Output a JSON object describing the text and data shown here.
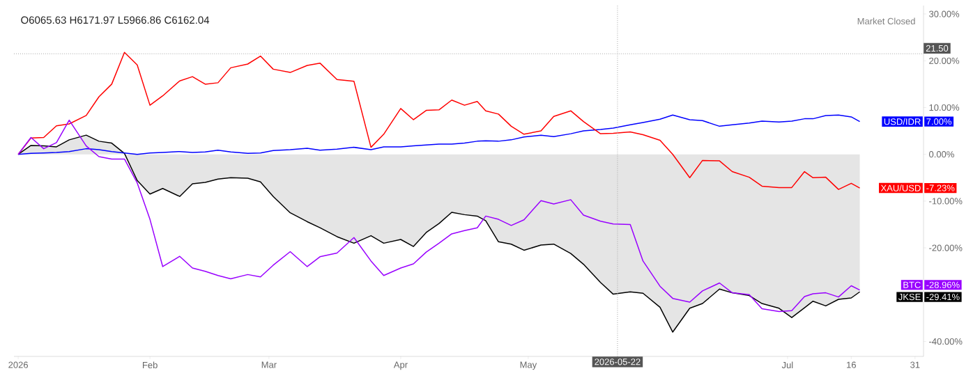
{
  "chart_data": {
    "type": "line",
    "x": [
      "2026-01-01",
      "2026-01-04",
      "2026-01-07",
      "2026-01-10",
      "2026-01-13",
      "2026-01-17",
      "2026-01-20",
      "2026-01-23",
      "2026-01-26",
      "2026-01-29",
      "2026-02-01",
      "2026-02-04",
      "2026-02-08",
      "2026-02-11",
      "2026-02-14",
      "2026-02-17",
      "2026-02-20",
      "2026-02-24",
      "2026-02-27",
      "2026-03-02",
      "2026-03-06",
      "2026-03-10",
      "2026-03-13",
      "2026-03-17",
      "2026-03-21",
      "2026-03-25",
      "2026-03-28",
      "2026-04-01",
      "2026-04-04",
      "2026-04-07",
      "2026-04-10",
      "2026-04-13",
      "2026-04-16",
      "2026-04-19",
      "2026-04-21",
      "2026-04-24",
      "2026-04-27",
      "2026-04-30",
      "2026-05-04",
      "2026-05-07",
      "2026-05-11",
      "2026-05-14",
      "2026-05-18",
      "2026-05-21",
      "2026-05-25",
      "2026-05-28",
      "2026-06-01",
      "2026-06-04",
      "2026-06-08",
      "2026-06-11",
      "2026-06-15",
      "2026-06-18",
      "2026-06-22",
      "2026-06-25",
      "2026-06-29",
      "2026-07-02",
      "2026-07-05",
      "2026-07-07",
      "2026-07-10",
      "2026-07-13",
      "2026-07-16",
      "2026-07-18"
    ],
    "series": [
      {
        "name": "JKSE",
        "type": "area",
        "color": "#000000",
        "values": [
          0,
          1.9,
          1.8,
          1.6,
          3.1,
          4.1,
          2.8,
          2.4,
          0.2,
          -5.6,
          -8.5,
          -7.3,
          -9.0,
          -6.3,
          -6.0,
          -5.3,
          -5.0,
          -5.1,
          -5.9,
          -9.0,
          -12.5,
          -14.4,
          -15.7,
          -17.6,
          -19.0,
          -17.4,
          -19.0,
          -18.2,
          -19.7,
          -16.7,
          -14.8,
          -12.4,
          -12.9,
          -13.2,
          -14.2,
          -18.7,
          -19.2,
          -20.5,
          -19.4,
          -19.2,
          -21.2,
          -23.5,
          -27.4,
          -29.9,
          -29.4,
          -29.7,
          -32.7,
          -38.0,
          -32.9,
          -31.9,
          -28.8,
          -29.6,
          -30.2,
          -31.9,
          -32.9,
          -34.9,
          -32.8,
          -31.4,
          -32.4,
          -31.0,
          -30.7,
          -29.4
        ]
      },
      {
        "name": "USD/IDR",
        "color": "#0000ff",
        "values": [
          0,
          0.2,
          0.3,
          0.4,
          0.6,
          1.2,
          1.0,
          0.6,
          0.3,
          0.0,
          0.3,
          0.4,
          0.6,
          0.4,
          0.5,
          0.9,
          0.5,
          0.2,
          0.3,
          0.8,
          1.0,
          1.3,
          0.9,
          1.1,
          1.5,
          1.0,
          1.6,
          1.6,
          1.8,
          2.0,
          2.2,
          2.2,
          2.4,
          2.8,
          2.9,
          2.8,
          3.1,
          3.7,
          4.1,
          3.8,
          4.4,
          5.0,
          5.3,
          5.6,
          6.3,
          6.8,
          7.5,
          8.4,
          7.4,
          7.2,
          6.0,
          6.3,
          6.7,
          7.1,
          6.9,
          7.1,
          7.6,
          7.6,
          8.3,
          8.4,
          8.0,
          7.0
        ]
      },
      {
        "name": "XAU/USD",
        "color": "#ff0000",
        "values": [
          0,
          3.5,
          3.6,
          6.1,
          6.5,
          8.3,
          12.3,
          15.0,
          21.8,
          19.1,
          10.5,
          12.5,
          15.7,
          16.6,
          15.0,
          15.3,
          18.5,
          19.3,
          21.0,
          18.2,
          17.5,
          19.0,
          19.5,
          16.0,
          15.6,
          1.5,
          4.3,
          9.8,
          7.4,
          9.4,
          9.5,
          11.6,
          10.5,
          11.3,
          9.3,
          8.6,
          6.0,
          4.3,
          5.0,
          8.1,
          9.3,
          7.0,
          4.4,
          4.5,
          4.8,
          4.2,
          3.0,
          0.0,
          -5.0,
          -1.3,
          -1.4,
          -3.7,
          -4.9,
          -6.8,
          -7.1,
          -7.1,
          -3.7,
          -5.0,
          -4.9,
          -7.5,
          -6.2,
          -7.2
        ]
      },
      {
        "name": "BTC",
        "color": "#9900ff",
        "values": [
          0,
          3.6,
          1.2,
          2.5,
          7.3,
          1.8,
          -0.5,
          -1.0,
          -1.0,
          -6.1,
          -13.9,
          -24.0,
          -21.8,
          -24.3,
          -25.0,
          -25.9,
          -26.6,
          -25.7,
          -26.2,
          -23.7,
          -20.8,
          -24.0,
          -21.9,
          -21.1,
          -17.8,
          -22.8,
          -25.9,
          -24.3,
          -23.4,
          -20.9,
          -19.0,
          -17.0,
          -16.3,
          -15.7,
          -13.2,
          -13.9,
          -15.2,
          -14.0,
          -9.9,
          -10.6,
          -9.7,
          -13.0,
          -14.3,
          -14.9,
          -15.0,
          -22.8,
          -28.2,
          -30.8,
          -31.6,
          -29.2,
          -27.5,
          -29.6,
          -30.0,
          -33.0,
          -33.6,
          -33.4,
          -30.4,
          -29.8,
          -29.6,
          -30.5,
          -28.1,
          -29.0
        ]
      }
    ],
    "xlim": [
      "2025-12-31",
      "2026-08-02"
    ],
    "xticks": [
      {
        "value": "2026-01-01",
        "label": "2026"
      },
      {
        "value": "2026-02-01",
        "label": "Feb"
      },
      {
        "value": "2026-03-01",
        "label": "Mar"
      },
      {
        "value": "2026-04-01",
        "label": "Apr"
      },
      {
        "value": "2026-05-01",
        "label": "May"
      },
      {
        "value": "2026-07-01",
        "label": "Jul"
      },
      {
        "value": "2026-07-16",
        "label": "16"
      },
      {
        "value": "2026-07-31",
        "label": "31"
      }
    ],
    "ylim": [
      -43.2,
      31.8
    ],
    "yticks": [
      {
        "value": 30,
        "label": "30.00%"
      },
      {
        "value": 20,
        "label": "20.00%"
      },
      {
        "value": 10,
        "label": "10.00%"
      },
      {
        "value": 0,
        "label": "0.00%"
      },
      {
        "value": -10,
        "label": "-10.00%"
      },
      {
        "value": -20,
        "label": "-20.00%"
      },
      {
        "value": -40,
        "label": "-40.00%"
      }
    ],
    "ref_lines": [
      {
        "axis": "x",
        "value": "2026-05-22",
        "label": "2026-05-22"
      },
      {
        "axis": "y",
        "value": 21.5,
        "label": "21.50"
      }
    ],
    "annotations": [
      "O6065.63 H6171.97 L5966.86 C6162.04",
      "Market Closed",
      "-29.41%",
      "7.00%",
      "-7.23%",
      "-28.96%"
    ],
    "grid": false,
    "legend": "right",
    "marker": "none",
    "line_style": "solid"
  }
}
